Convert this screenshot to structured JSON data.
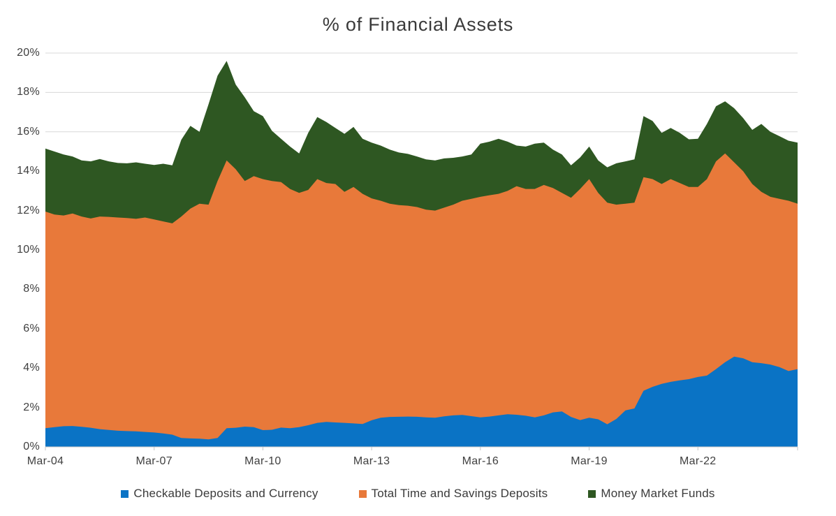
{
  "chart_data": {
    "type": "area",
    "stacked": true,
    "title": "% of Financial Assets",
    "ylim": [
      0,
      20
    ],
    "grid": "horizontal",
    "legend_position": "bottom",
    "gridline_color": "#d8d8d8",
    "axis_color": "#c6c6c6",
    "text_color": "#3f3f3f",
    "y_tick_labels": [
      {
        "label": "0%",
        "value": 0
      },
      {
        "label": "2%",
        "value": 2
      },
      {
        "label": "4%",
        "value": 4
      },
      {
        "label": "6%",
        "value": 6
      },
      {
        "label": "8%",
        "value": 8
      },
      {
        "label": "10%",
        "value": 10
      },
      {
        "label": "12%",
        "value": 12
      },
      {
        "label": "14%",
        "value": 14
      },
      {
        "label": "16%",
        "value": 16
      },
      {
        "label": "18%",
        "value": 18
      },
      {
        "label": "20%",
        "value": 20
      }
    ],
    "x_tick_labels": [
      {
        "label": "Mar-04",
        "index": 0
      },
      {
        "label": "Mar-07",
        "index": 12
      },
      {
        "label": "Mar-10",
        "index": 24
      },
      {
        "label": "Mar-13",
        "index": 36
      },
      {
        "label": "Mar-16",
        "index": 48
      },
      {
        "label": "Mar-19",
        "index": 60
      },
      {
        "label": "Mar-22",
        "index": 72
      }
    ],
    "series": [
      {
        "name": "Checkable Deposits and Currency",
        "color": "#0a73c5",
        "values": [
          0.95,
          1.0,
          1.05,
          1.06,
          1.02,
          0.97,
          0.9,
          0.86,
          0.82,
          0.8,
          0.79,
          0.76,
          0.73,
          0.68,
          0.62,
          0.45,
          0.43,
          0.42,
          0.38,
          0.45,
          0.95,
          0.97,
          1.03,
          1.0,
          0.85,
          0.87,
          0.98,
          0.95,
          1.0,
          1.1,
          1.22,
          1.27,
          1.24,
          1.22,
          1.19,
          1.16,
          1.35,
          1.48,
          1.52,
          1.53,
          1.54,
          1.53,
          1.5,
          1.48,
          1.55,
          1.6,
          1.62,
          1.56,
          1.5,
          1.54,
          1.6,
          1.66,
          1.63,
          1.58,
          1.5,
          1.6,
          1.75,
          1.8,
          1.52,
          1.36,
          1.48,
          1.4,
          1.15,
          1.42,
          1.85,
          1.95,
          2.85,
          3.05,
          3.2,
          3.3,
          3.38,
          3.44,
          3.55,
          3.62,
          3.95,
          4.3,
          4.58,
          4.5,
          4.3,
          4.25,
          4.18,
          4.05,
          3.85,
          3.95
        ]
      },
      {
        "name": "Total Time and Savings Deposits",
        "color": "#e8793a",
        "values": [
          11.0,
          10.8,
          10.7,
          10.79,
          10.68,
          10.63,
          10.8,
          10.82,
          10.83,
          10.82,
          10.79,
          10.89,
          10.82,
          10.77,
          10.73,
          11.25,
          11.67,
          11.93,
          11.92,
          13.05,
          13.6,
          13.13,
          12.47,
          12.75,
          12.75,
          12.63,
          12.47,
          12.15,
          11.9,
          11.95,
          12.38,
          12.13,
          12.11,
          11.73,
          12.01,
          11.69,
          11.27,
          11.02,
          10.83,
          10.75,
          10.71,
          10.65,
          10.55,
          10.52,
          10.6,
          10.7,
          10.88,
          11.04,
          11.2,
          11.24,
          11.25,
          11.34,
          11.61,
          11.52,
          11.6,
          11.7,
          11.4,
          11.1,
          11.13,
          11.74,
          12.12,
          11.5,
          11.25,
          10.88,
          10.5,
          10.45,
          10.85,
          10.55,
          10.15,
          10.3,
          10.02,
          9.76,
          9.65,
          9.98,
          10.55,
          10.6,
          9.87,
          9.5,
          9.05,
          8.7,
          8.52,
          8.55,
          8.65,
          8.4
        ]
      },
      {
        "name": "Money Market Funds",
        "color": "#2e5722",
        "values": [
          3.2,
          3.2,
          3.1,
          2.9,
          2.85,
          2.9,
          2.92,
          2.82,
          2.77,
          2.78,
          2.87,
          2.73,
          2.77,
          2.93,
          2.95,
          3.9,
          4.2,
          3.65,
          5.1,
          5.35,
          5.05,
          4.3,
          4.25,
          3.3,
          3.2,
          2.55,
          2.2,
          2.15,
          2.0,
          2.9,
          3.15,
          3.1,
          2.85,
          2.95,
          3.05,
          2.8,
          2.83,
          2.8,
          2.75,
          2.67,
          2.63,
          2.57,
          2.55,
          2.55,
          2.5,
          2.38,
          2.25,
          2.25,
          2.7,
          2.72,
          2.8,
          2.5,
          2.06,
          2.15,
          2.3,
          2.15,
          1.95,
          1.95,
          1.65,
          1.6,
          1.65,
          1.65,
          1.8,
          2.1,
          2.15,
          2.2,
          3.1,
          2.95,
          2.6,
          2.6,
          2.55,
          2.42,
          2.45,
          2.8,
          2.8,
          2.65,
          2.75,
          2.7,
          2.75,
          3.45,
          3.3,
          3.18,
          3.05,
          3.1
        ]
      }
    ]
  }
}
